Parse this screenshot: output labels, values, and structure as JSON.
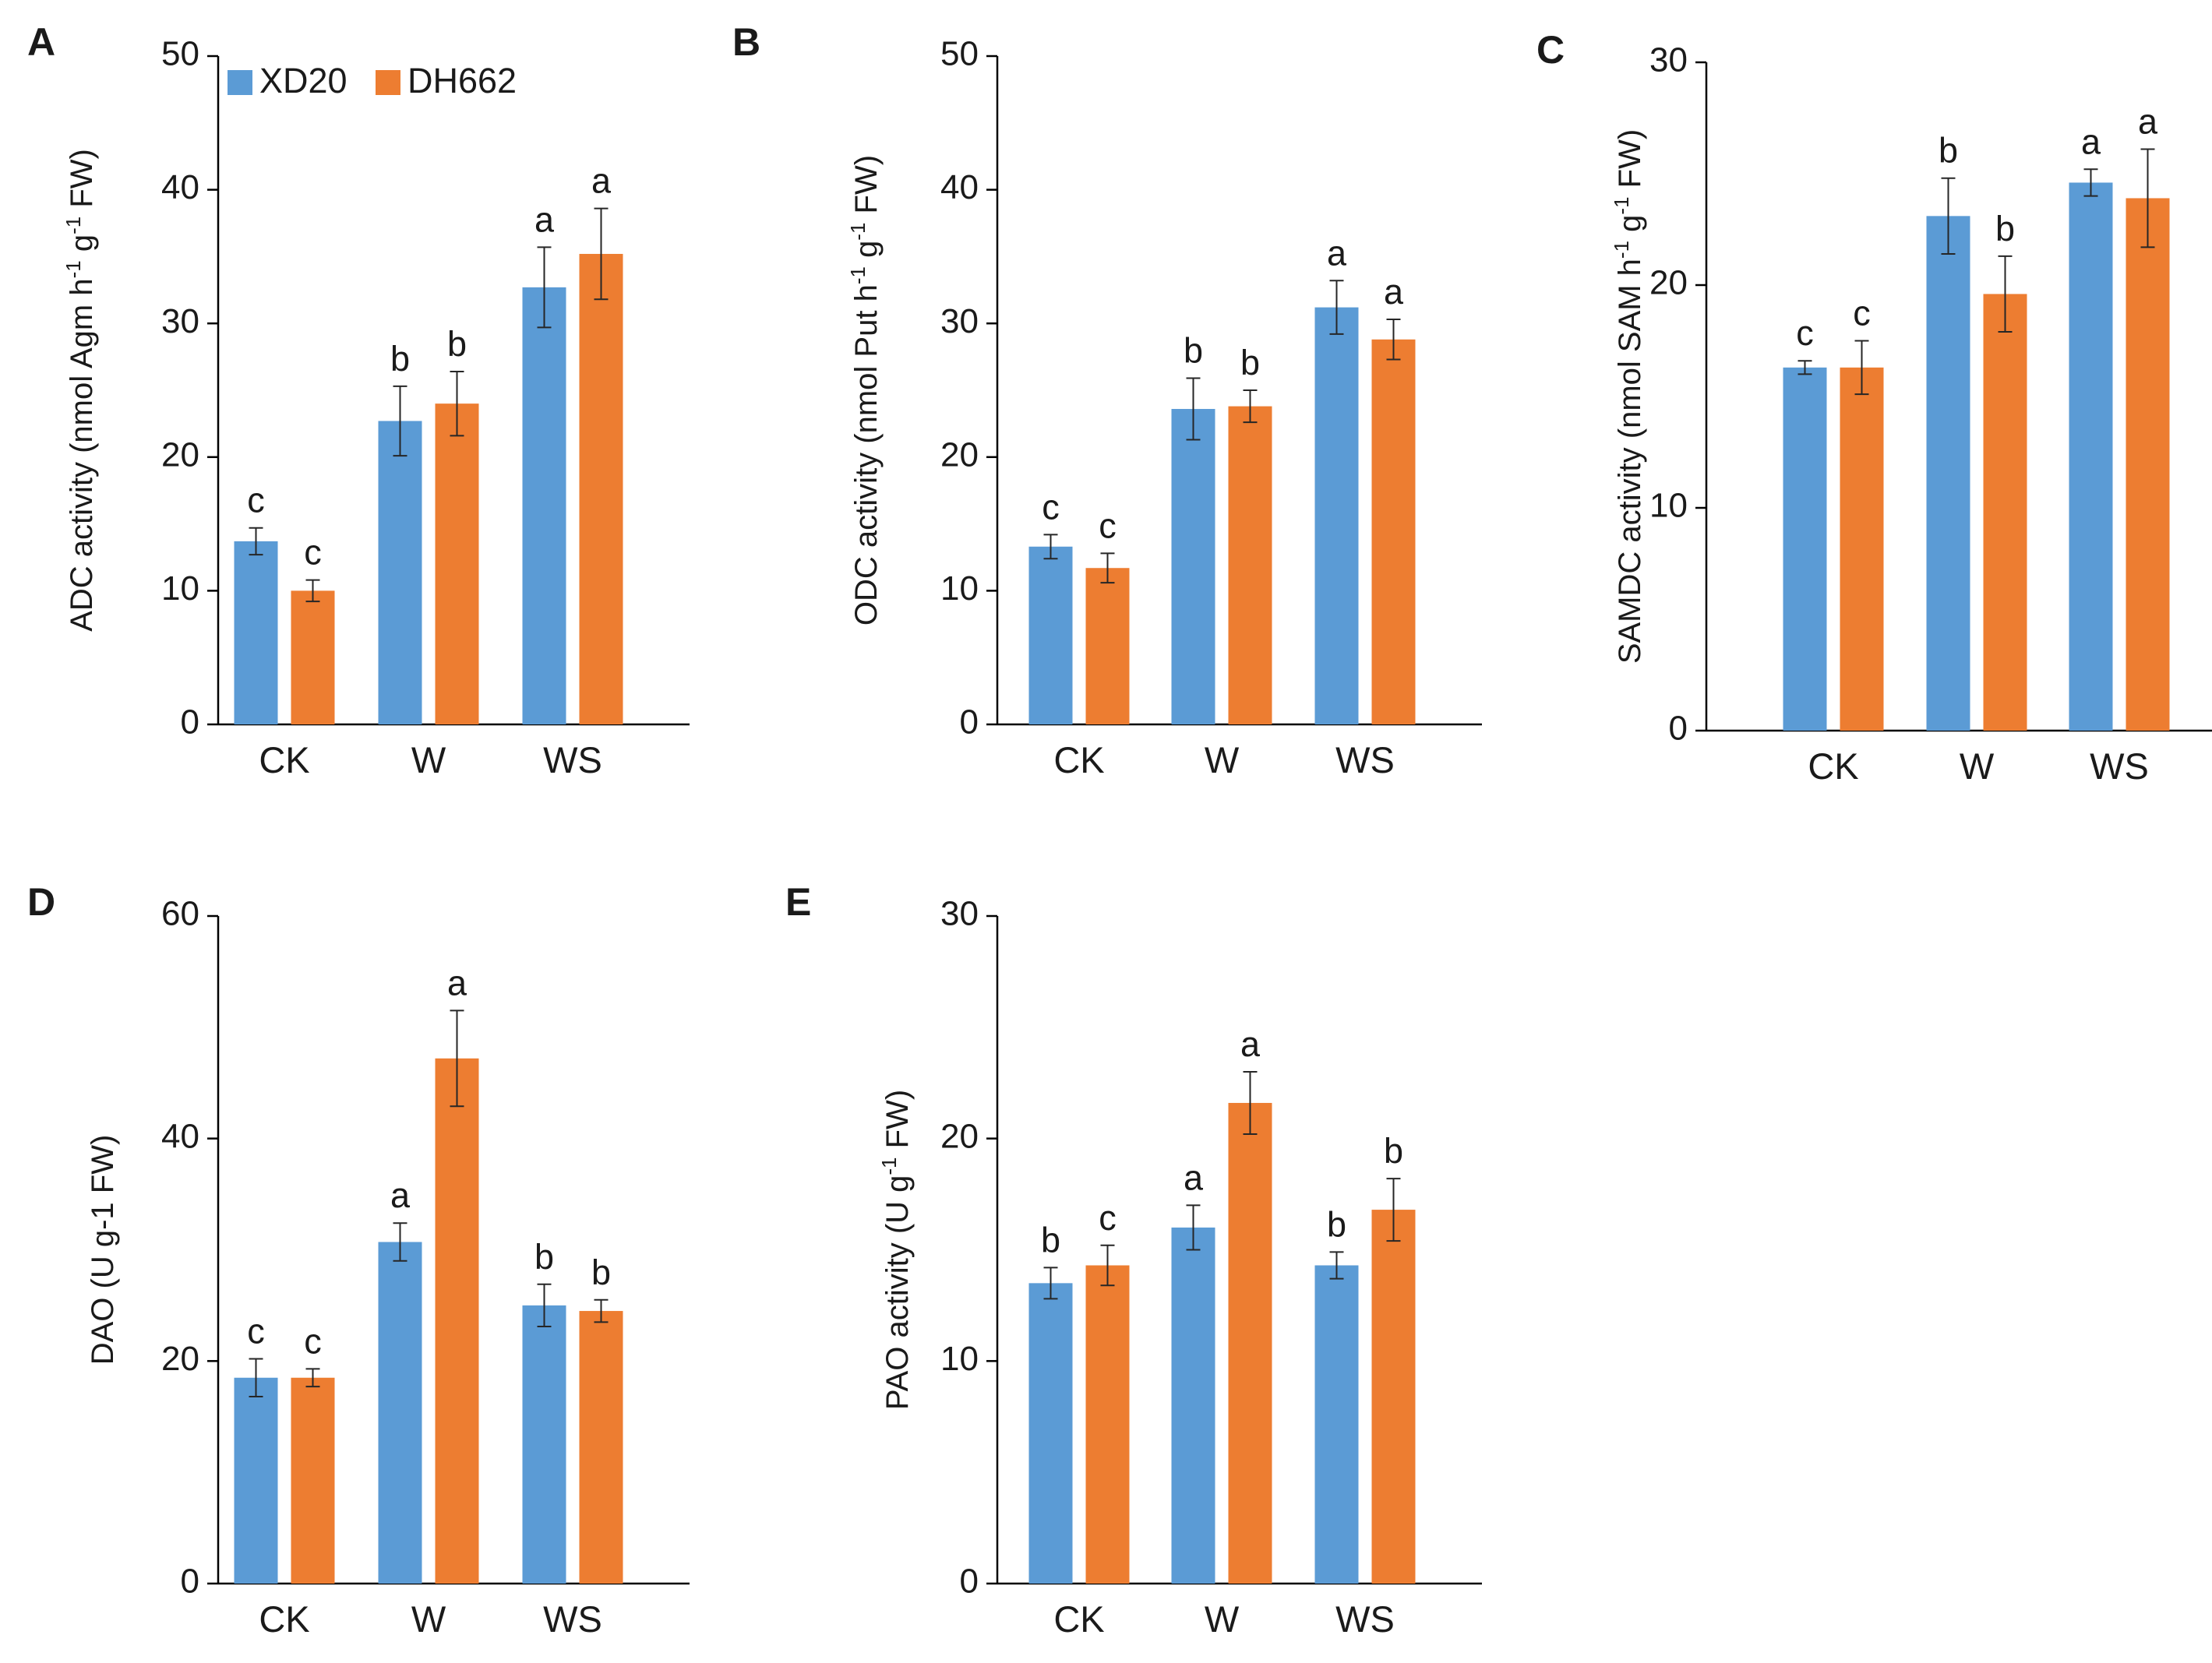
{
  "legend": [
    {
      "name": "XD20",
      "color": "#5b9bd5"
    },
    {
      "name": "DH662",
      "color": "#ed7d31"
    }
  ],
  "chart_data": [
    {
      "type": "bar",
      "panel": "A",
      "categories": [
        "CK",
        "W",
        "WS"
      ],
      "ylabel_parts": [
        "ADC activity (nmol Agm h",
        "-1",
        " g",
        "-1",
        " FW)"
      ],
      "ylim": [
        0,
        50
      ],
      "yticks": [
        0,
        10,
        20,
        30,
        40,
        50
      ],
      "series": [
        {
          "name": "XD20",
          "values": [
            13.7,
            22.7,
            32.7
          ],
          "errors": [
            1.0,
            2.6,
            3.0
          ],
          "sig": [
            "c",
            "b",
            "a"
          ]
        },
        {
          "name": "DH662",
          "values": [
            10.0,
            24.0,
            35.2
          ],
          "errors": [
            0.8,
            2.4,
            3.4
          ],
          "sig": [
            "c",
            "b",
            "a"
          ]
        }
      ]
    },
    {
      "type": "bar",
      "panel": "B",
      "categories": [
        "CK",
        "W",
        "WS"
      ],
      "ylabel_parts": [
        "ODC activity (nmol Put h",
        "-1",
        " g",
        "-1",
        " FW)"
      ],
      "ylim": [
        0,
        50
      ],
      "yticks": [
        0,
        10,
        20,
        30,
        40,
        50
      ],
      "series": [
        {
          "name": "XD20",
          "values": [
            13.3,
            23.6,
            31.2
          ],
          "errors": [
            0.9,
            2.3,
            2.0
          ],
          "sig": [
            "c",
            "b",
            "a"
          ]
        },
        {
          "name": "DH662",
          "values": [
            11.7,
            23.8,
            28.8
          ],
          "errors": [
            1.1,
            1.2,
            1.5
          ],
          "sig": [
            "c",
            "b",
            "a"
          ]
        }
      ]
    },
    {
      "type": "bar",
      "panel": "C",
      "categories": [
        "CK",
        "W",
        "WS"
      ],
      "ylabel_parts": [
        "SAMDC activity (nmol SAM h",
        "-1",
        " g",
        "-1",
        " FW)"
      ],
      "ylim": [
        0,
        30
      ],
      "yticks": [
        0,
        10,
        20,
        30
      ],
      "series": [
        {
          "name": "XD20",
          "values": [
            16.3,
            23.1,
            24.6
          ],
          "errors": [
            0.3,
            1.7,
            0.6
          ],
          "sig": [
            "c",
            "b",
            "a"
          ]
        },
        {
          "name": "DH662",
          "values": [
            16.3,
            19.6,
            23.9
          ],
          "errors": [
            1.2,
            1.7,
            2.2
          ],
          "sig": [
            "c",
            "b",
            "a"
          ]
        }
      ]
    },
    {
      "type": "bar",
      "panel": "D",
      "categories": [
        "CK",
        "W",
        "WS"
      ],
      "ylabel_parts": [
        "DAO (U g-1 FW)"
      ],
      "ylim": [
        0,
        60
      ],
      "yticks": [
        0,
        20,
        40,
        60
      ],
      "series": [
        {
          "name": "XD20",
          "values": [
            18.5,
            30.7,
            25.0
          ],
          "errors": [
            1.7,
            1.7,
            1.9
          ],
          "sig": [
            "c",
            "a",
            "b"
          ]
        },
        {
          "name": "DH662",
          "values": [
            18.5,
            47.2,
            24.5
          ],
          "errors": [
            0.8,
            4.3,
            1.0
          ],
          "sig": [
            "c",
            "a",
            "b"
          ]
        }
      ]
    },
    {
      "type": "bar",
      "panel": "E",
      "categories": [
        "CK",
        "W",
        "WS"
      ],
      "ylabel_parts": [
        "PAO activity (U g",
        "-1",
        " FW)"
      ],
      "ylim": [
        0,
        30
      ],
      "yticks": [
        0,
        10,
        20,
        30
      ],
      "series": [
        {
          "name": "XD20",
          "values": [
            13.5,
            16.0,
            14.3
          ],
          "errors": [
            0.7,
            1.0,
            0.6
          ],
          "sig": [
            "b",
            "a",
            "b"
          ]
        },
        {
          "name": "DH662",
          "values": [
            14.3,
            21.6,
            16.8
          ],
          "errors": [
            0.9,
            1.4,
            1.4
          ],
          "sig": [
            "c",
            "a",
            "b"
          ]
        }
      ]
    }
  ]
}
